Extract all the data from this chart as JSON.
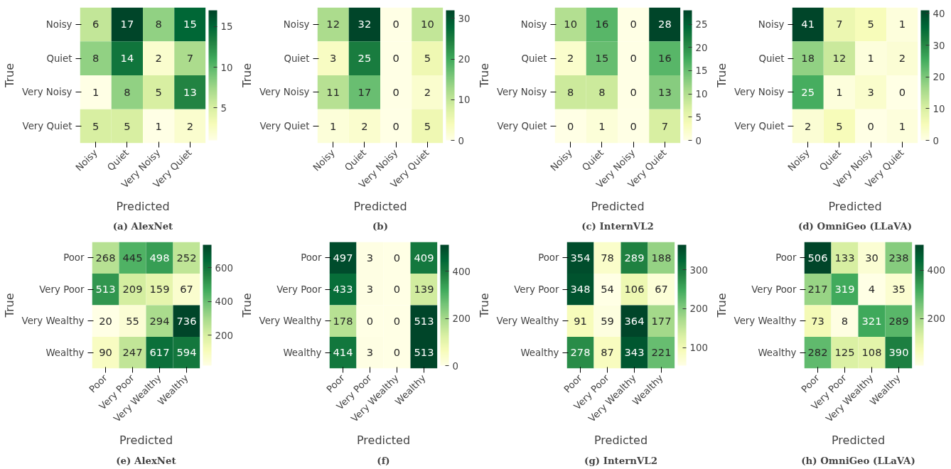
{
  "chart_data": [
    {
      "type": "heatmap",
      "title": "(a) AlexNet",
      "data_labels": true,
      "xlabel": "Predicted",
      "ylabel": "True",
      "categories": [
        "Noisy",
        "Quiet",
        "Very Noisy",
        "Very Quiet"
      ],
      "y_categories": [
        "Noisy",
        "Quiet",
        "Very Noisy",
        "Very Quiet"
      ],
      "cells": [
        [
          6,
          17,
          8,
          15
        ],
        [
          8,
          14,
          2,
          7
        ],
        [
          1,
          8,
          5,
          13
        ],
        [
          5,
          5,
          1,
          2
        ]
      ],
      "clim": [
        1,
        17
      ],
      "cticks": [
        5,
        10,
        15
      ]
    },
    {
      "type": "heatmap",
      "title": "(b)",
      "data_labels": true,
      "xlabel": "Predicted",
      "ylabel": "True",
      "categories": [
        "Noisy",
        "Quiet",
        "Very Noisy",
        "Very Quiet"
      ],
      "y_categories": [
        "Noisy",
        "Quiet",
        "Very Noisy",
        "Very Quiet"
      ],
      "cells": [
        [
          12,
          32,
          0,
          10
        ],
        [
          3,
          25,
          0,
          5
        ],
        [
          11,
          17,
          0,
          2
        ],
        [
          1,
          2,
          0,
          5
        ]
      ],
      "clim": [
        0,
        32
      ],
      "cticks": [
        0,
        10,
        20,
        30
      ]
    },
    {
      "type": "heatmap",
      "title": "(c) InternVL2",
      "data_labels": true,
      "xlabel": "Predicted",
      "ylabel": "True",
      "categories": [
        "Noisy",
        "Quiet",
        "Very Noisy",
        "Very Quiet"
      ],
      "y_categories": [
        "Noisy",
        "Quiet",
        "Very Noisy",
        "Very Quiet"
      ],
      "cells": [
        [
          10,
          16,
          0,
          28
        ],
        [
          2,
          15,
          0,
          16
        ],
        [
          8,
          8,
          0,
          13
        ],
        [
          0,
          1,
          0,
          7
        ]
      ],
      "clim": [
        0,
        28
      ],
      "cticks": [
        0,
        5,
        10,
        15,
        20,
        25
      ]
    },
    {
      "type": "heatmap",
      "title": "(d) OmniGeo (LLaVA)",
      "data_labels": true,
      "xlabel": "Predicted",
      "ylabel": "True",
      "categories": [
        "Noisy",
        "Quiet",
        "Very Noisy",
        "Very Quiet"
      ],
      "y_categories": [
        "Noisy",
        "Quiet",
        "Very Noisy",
        "Very Quiet"
      ],
      "cells": [
        [
          41,
          7,
          5,
          1
        ],
        [
          18,
          12,
          1,
          2
        ],
        [
          25,
          1,
          3,
          0
        ],
        [
          2,
          5,
          0,
          1
        ]
      ],
      "clim": [
        0,
        41
      ],
      "cticks": [
        0,
        10,
        20,
        30,
        40
      ]
    },
    {
      "type": "heatmap",
      "title": "(e) AlexNet",
      "data_labels": true,
      "xlabel": "Predicted",
      "ylabel": "True",
      "categories": [
        "Poor",
        "Very Poor",
        "Very Wealthy",
        "Wealthy"
      ],
      "y_categories": [
        "Poor",
        "Very Poor",
        "Very Wealthy",
        "Wealthy"
      ],
      "cells": [
        [
          268,
          445,
          498,
          252
        ],
        [
          513,
          209,
          159,
          67
        ],
        [
          20,
          55,
          294,
          736
        ],
        [
          90,
          247,
          617,
          594
        ]
      ],
      "clim": [
        20,
        736
      ],
      "cticks": [
        200,
        400,
        600
      ]
    },
    {
      "type": "heatmap",
      "title": "(f)",
      "data_labels": true,
      "xlabel": "Predicted",
      "ylabel": "True",
      "categories": [
        "Poor",
        "Very Poor",
        "Very Wealthy",
        "Wealthy"
      ],
      "y_categories": [
        "Poor",
        "Very Poor",
        "Very Wealthy",
        "Wealthy"
      ],
      "cells": [
        [
          497,
          3,
          0,
          409
        ],
        [
          433,
          3,
          0,
          139
        ],
        [
          178,
          0,
          0,
          513
        ],
        [
          414,
          3,
          0,
          513
        ]
      ],
      "clim": [
        0,
        513
      ],
      "cticks": [
        0,
        200,
        400
      ]
    },
    {
      "type": "heatmap",
      "title": "(g) InternVL2",
      "data_labels": true,
      "xlabel": "Predicted",
      "ylabel": "True",
      "categories": [
        "Poor",
        "Very Poor",
        "Very Wealthy",
        "Wealthy"
      ],
      "y_categories": [
        "Poor",
        "Very Poor",
        "Very Wealthy",
        "Wealthy"
      ],
      "cells": [
        [
          354,
          78,
          289,
          188
        ],
        [
          348,
          54,
          106,
          67
        ],
        [
          91,
          59,
          364,
          177
        ],
        [
          278,
          87,
          343,
          221
        ]
      ],
      "clim": [
        54,
        364
      ],
      "cticks": [
        100,
        200,
        300
      ]
    },
    {
      "type": "heatmap",
      "title": "(h) OmniGeo (LLaVA)",
      "data_labels": true,
      "xlabel": "Predicted",
      "ylabel": "True",
      "categories": [
        "Poor",
        "Very Poor",
        "Very Wealthy",
        "Wealthy"
      ],
      "y_categories": [
        "Poor",
        "Very Poor",
        "Very Wealthy",
        "Wealthy"
      ],
      "cells": [
        [
          506,
          133,
          30,
          238
        ],
        [
          217,
          319,
          4,
          35
        ],
        [
          73,
          8,
          321,
          289
        ],
        [
          282,
          125,
          108,
          390
        ]
      ],
      "clim": [
        4,
        506
      ],
      "cticks": [
        200,
        400
      ]
    }
  ]
}
